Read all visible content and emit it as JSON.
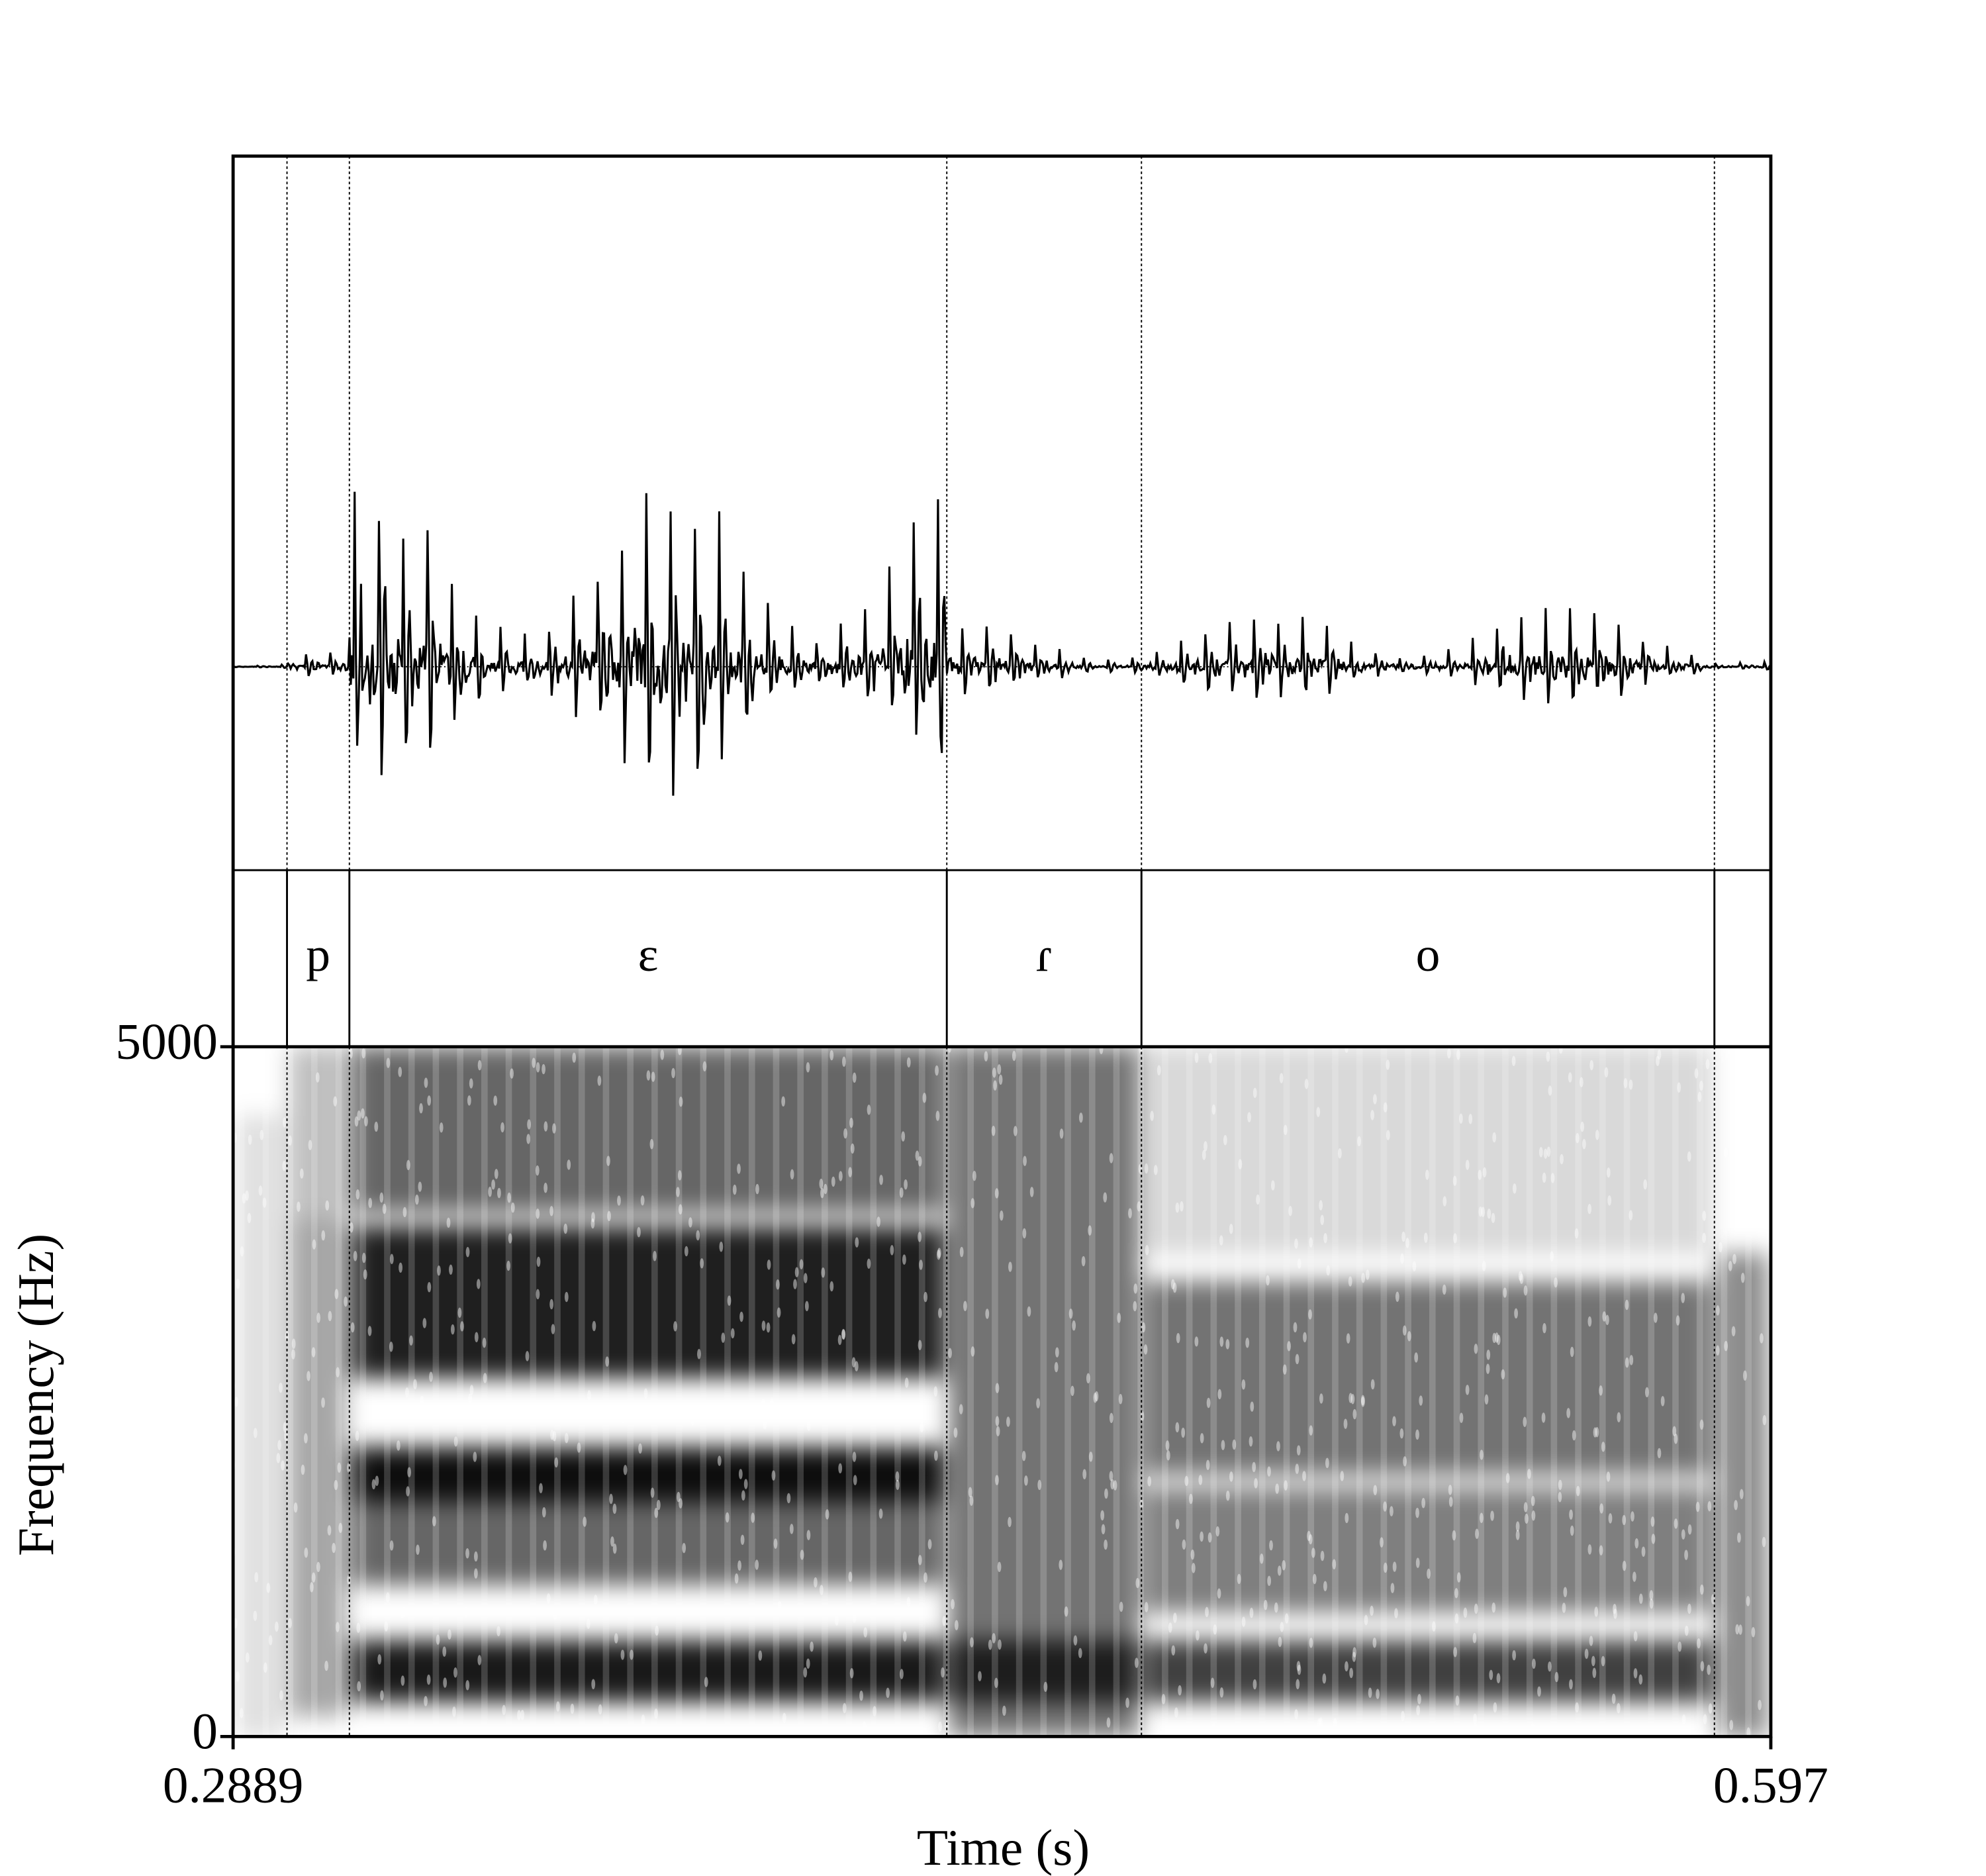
{
  "chart_data": {
    "type": "spectrogram",
    "xlabel": "Time (s)",
    "ylabel": "Frequency (Hz)",
    "xlim": [
      0.2889,
      0.597
    ],
    "xticks": [
      0.2889,
      0.597
    ],
    "ylim": [
      0,
      5000
    ],
    "yticks": [
      0,
      5000
    ],
    "boundaries": [
      0.2997,
      0.3122,
      0.4319,
      0.4709,
      0.5857
    ],
    "segments": [
      "p",
      "ɛ",
      "ɾ",
      "o"
    ]
  }
}
